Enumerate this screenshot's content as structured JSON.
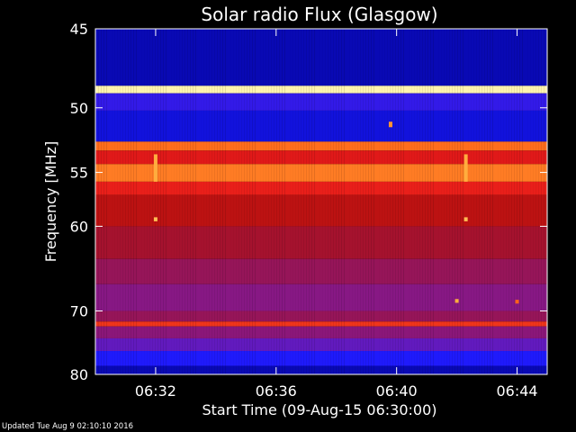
{
  "chart_data": {
    "type": "heatmap",
    "title": "Solar radio Flux (Glasgow)",
    "xlabel": "Start Time (09-Aug-15 06:30:00)",
    "ylabel": "Frequency [MHz]",
    "x_unit": "minutes",
    "x_range": [
      "06:30:00",
      "06:45:00"
    ],
    "x_ticks": [
      "06:32",
      "06:36",
      "06:40",
      "06:44"
    ],
    "x_tick_values_min": [
      32,
      36,
      40,
      44
    ],
    "y_scale": "reciprocal",
    "y_range_mhz": [
      45,
      80
    ],
    "y_ticks": [
      45,
      50,
      55,
      60,
      70,
      80
    ],
    "colormap": [
      "#00008b",
      "#1a1aff",
      "#7a1aa8",
      "#b01010",
      "#e81a1a",
      "#ff6a1a",
      "#ffb040",
      "#ffffc0"
    ],
    "frequency_bands": [
      {
        "from_mhz": 45.0,
        "to_mhz": 48.5,
        "level": 0.05
      },
      {
        "from_mhz": 48.5,
        "to_mhz": 49.0,
        "level": 0.98
      },
      {
        "from_mhz": 49.0,
        "to_mhz": 50.2,
        "level": 0.18
      },
      {
        "from_mhz": 50.2,
        "to_mhz": 52.5,
        "level": 0.1
      },
      {
        "from_mhz": 52.5,
        "to_mhz": 53.2,
        "level": 0.72
      },
      {
        "from_mhz": 53.2,
        "to_mhz": 54.3,
        "level": 0.55
      },
      {
        "from_mhz": 54.3,
        "to_mhz": 55.8,
        "level": 0.75
      },
      {
        "from_mhz": 55.8,
        "to_mhz": 57.0,
        "level": 0.58
      },
      {
        "from_mhz": 57.0,
        "to_mhz": 60.0,
        "level": 0.46
      },
      {
        "from_mhz": 60.0,
        "to_mhz": 63.5,
        "level": 0.4
      },
      {
        "from_mhz": 63.5,
        "to_mhz": 66.5,
        "level": 0.36
      },
      {
        "from_mhz": 66.5,
        "to_mhz": 70.0,
        "level": 0.32
      },
      {
        "from_mhz": 70.0,
        "to_mhz": 71.5,
        "level": 0.36
      },
      {
        "from_mhz": 71.5,
        "to_mhz": 72.2,
        "level": 0.62
      },
      {
        "from_mhz": 72.2,
        "to_mhz": 74.0,
        "level": 0.33
      },
      {
        "from_mhz": 74.0,
        "to_mhz": 76.0,
        "level": 0.25
      },
      {
        "from_mhz": 76.0,
        "to_mhz": 78.5,
        "level": 0.15
      },
      {
        "from_mhz": 78.5,
        "to_mhz": 80.0,
        "level": 0.05
      }
    ],
    "spikes": [
      {
        "time_min": 32.0,
        "from_mhz": 53.5,
        "to_mhz": 55.8,
        "level": 0.85
      },
      {
        "time_min": 32.0,
        "from_mhz": 59.1,
        "to_mhz": 59.5,
        "level": 0.88
      },
      {
        "time_min": 42.3,
        "from_mhz": 53.5,
        "to_mhz": 55.8,
        "level": 0.85
      },
      {
        "time_min": 42.3,
        "from_mhz": 59.1,
        "to_mhz": 59.5,
        "level": 0.88
      },
      {
        "time_min": 39.8,
        "from_mhz": 51.0,
        "to_mhz": 51.4,
        "level": 0.8
      },
      {
        "time_min": 42.0,
        "from_mhz": 68.4,
        "to_mhz": 68.9,
        "level": 0.85
      },
      {
        "time_min": 44.0,
        "from_mhz": 68.5,
        "to_mhz": 69.0,
        "level": 0.7
      }
    ]
  },
  "footer": "Updated Tue Aug  9 02:10:10 2016"
}
